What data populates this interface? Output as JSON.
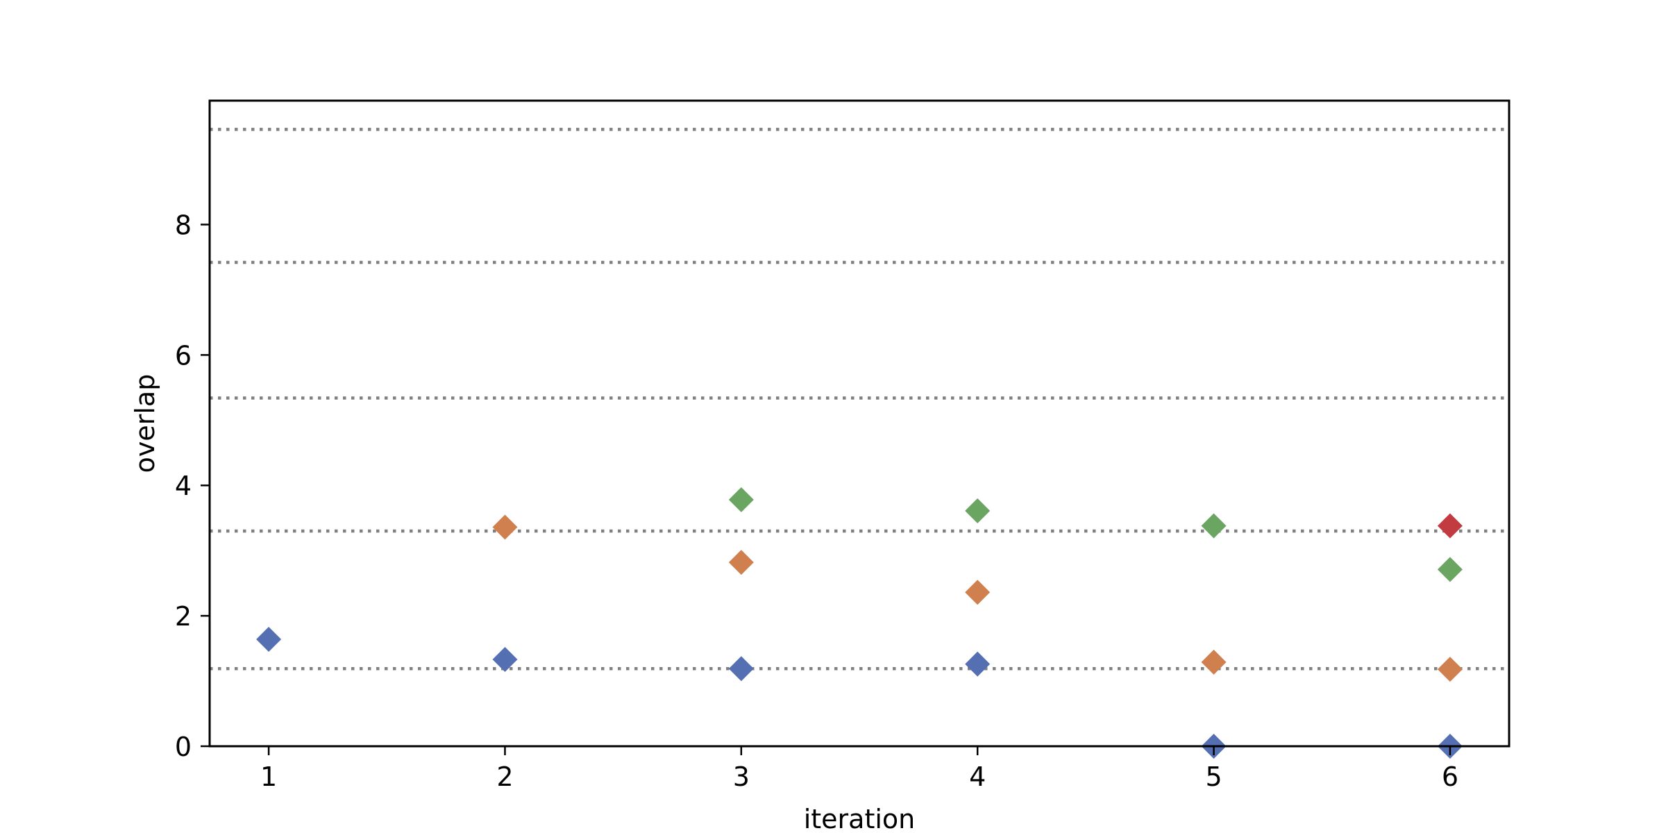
{
  "chart_data": {
    "type": "scatter",
    "xlabel": "iteration",
    "ylabel": "overlap",
    "xlim": [
      0.75,
      6.25
    ],
    "ylim": [
      0,
      9.9
    ],
    "x_ticks": [
      1,
      2,
      3,
      4,
      5,
      6
    ],
    "y_ticks": [
      0,
      2,
      4,
      6,
      8
    ],
    "grid": false,
    "marker": "diamond",
    "reference_lines": [
      1.19,
      3.3,
      5.34,
      7.42,
      9.46
    ],
    "reference_line_style": "dotted",
    "reference_line_color": "#808080",
    "series": [
      {
        "color": "#5470b3",
        "x": [
          1,
          2,
          3,
          4,
          5,
          6
        ],
        "y": [
          1.64,
          1.33,
          1.19,
          1.26,
          0.0,
          0.0
        ]
      },
      {
        "color": "#d0804f",
        "x": [
          2,
          3,
          4,
          5,
          6
        ],
        "y": [
          3.36,
          2.82,
          2.36,
          1.29,
          1.18
        ]
      },
      {
        "color": "#6aa562",
        "x": [
          3,
          4,
          5,
          6
        ],
        "y": [
          3.78,
          3.61,
          3.38,
          2.71
        ]
      },
      {
        "color": "#c23b40",
        "x": [
          6
        ],
        "y": [
          3.38
        ]
      }
    ]
  }
}
